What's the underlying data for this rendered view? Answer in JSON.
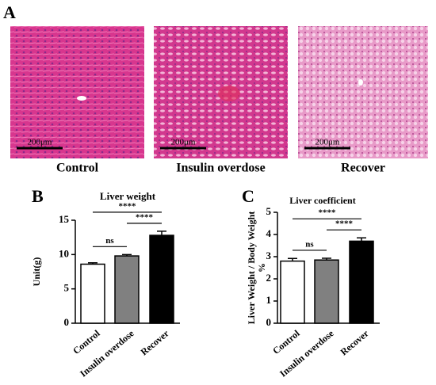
{
  "panel_labels": [
    "A",
    "B",
    "C"
  ],
  "images": [
    {
      "caption": "Control",
      "scale_bar": "200μm"
    },
    {
      "caption": "Insulin overdose",
      "scale_bar": "200μm"
    },
    {
      "caption": "Recover",
      "scale_bar": "200μm"
    }
  ],
  "chart_data": [
    {
      "type": "bar",
      "title": "Liver weight",
      "ylabel": [
        "Unit(g)"
      ],
      "categories": [
        "Control",
        "Insulin overdose",
        "Recover"
      ],
      "values": [
        8.6,
        9.8,
        12.8
      ],
      "errors": [
        0.2,
        0.2,
        0.6
      ],
      "colors": [
        "#ffffff",
        "#808080",
        "#000000"
      ],
      "ylim": [
        0,
        15
      ],
      "yticks": [
        0,
        5,
        10,
        15
      ],
      "comparisons": [
        {
          "label": "ns",
          "pair": [
            0,
            1
          ]
        },
        {
          "label": "****",
          "pair": [
            1,
            2
          ]
        },
        {
          "label": "****",
          "pair": [
            0,
            2
          ]
        }
      ]
    },
    {
      "type": "bar",
      "title": "Liver coefficient",
      "ylabel": [
        "Liver Weight / Body Weight",
        "%"
      ],
      "categories": [
        "Control",
        "Insulin overdose",
        "Recover"
      ],
      "values": [
        2.8,
        2.85,
        3.7
      ],
      "errors": [
        0.12,
        0.08,
        0.15
      ],
      "colors": [
        "#ffffff",
        "#808080",
        "#000000"
      ],
      "ylim": [
        0,
        5
      ],
      "yticks": [
        0,
        1,
        2,
        3,
        4,
        5
      ],
      "comparisons": [
        {
          "label": "ns",
          "pair": [
            0,
            1
          ]
        },
        {
          "label": "****",
          "pair": [
            1,
            2
          ]
        },
        {
          "label": "****",
          "pair": [
            0,
            2
          ]
        }
      ]
    }
  ]
}
